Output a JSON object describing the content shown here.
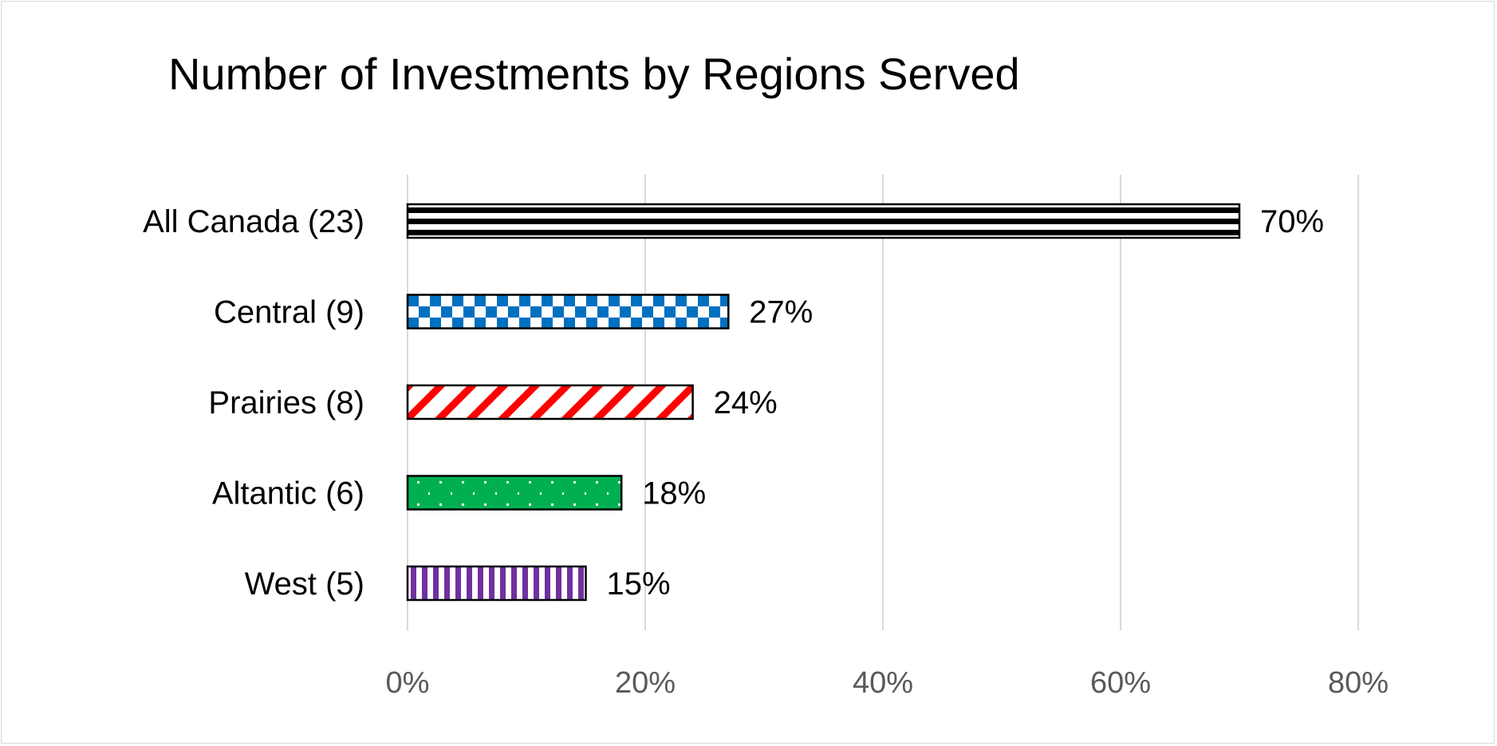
{
  "chart_data": {
    "type": "bar",
    "orientation": "horizontal",
    "title": "Number of Investments by Regions Served",
    "categories": [
      "All Canada (23)",
      "Central (9)",
      "Prairies (8)",
      "Altantic (6)",
      "West (5)"
    ],
    "values": [
      70,
      27,
      24,
      18,
      15
    ],
    "data_labels": [
      "70%",
      "27%",
      "24%",
      "18%",
      "15%"
    ],
    "xlim": [
      0,
      80
    ],
    "xticks": [
      0,
      20,
      40,
      60,
      80
    ],
    "xtick_labels": [
      "0%",
      "20%",
      "40%",
      "60%",
      "80%"
    ],
    "xlabel": "",
    "ylabel": "",
    "grid": true,
    "legend": "none",
    "bar_styles": [
      {
        "pattern": "horizontal-stripes",
        "color": "#000000"
      },
      {
        "pattern": "checker",
        "color": "#0070C0"
      },
      {
        "pattern": "diagonal-stripes",
        "color": "#FF0000"
      },
      {
        "pattern": "dots",
        "color": "#00B050"
      },
      {
        "pattern": "vertical-stripes",
        "color": "#7030A0"
      }
    ]
  }
}
